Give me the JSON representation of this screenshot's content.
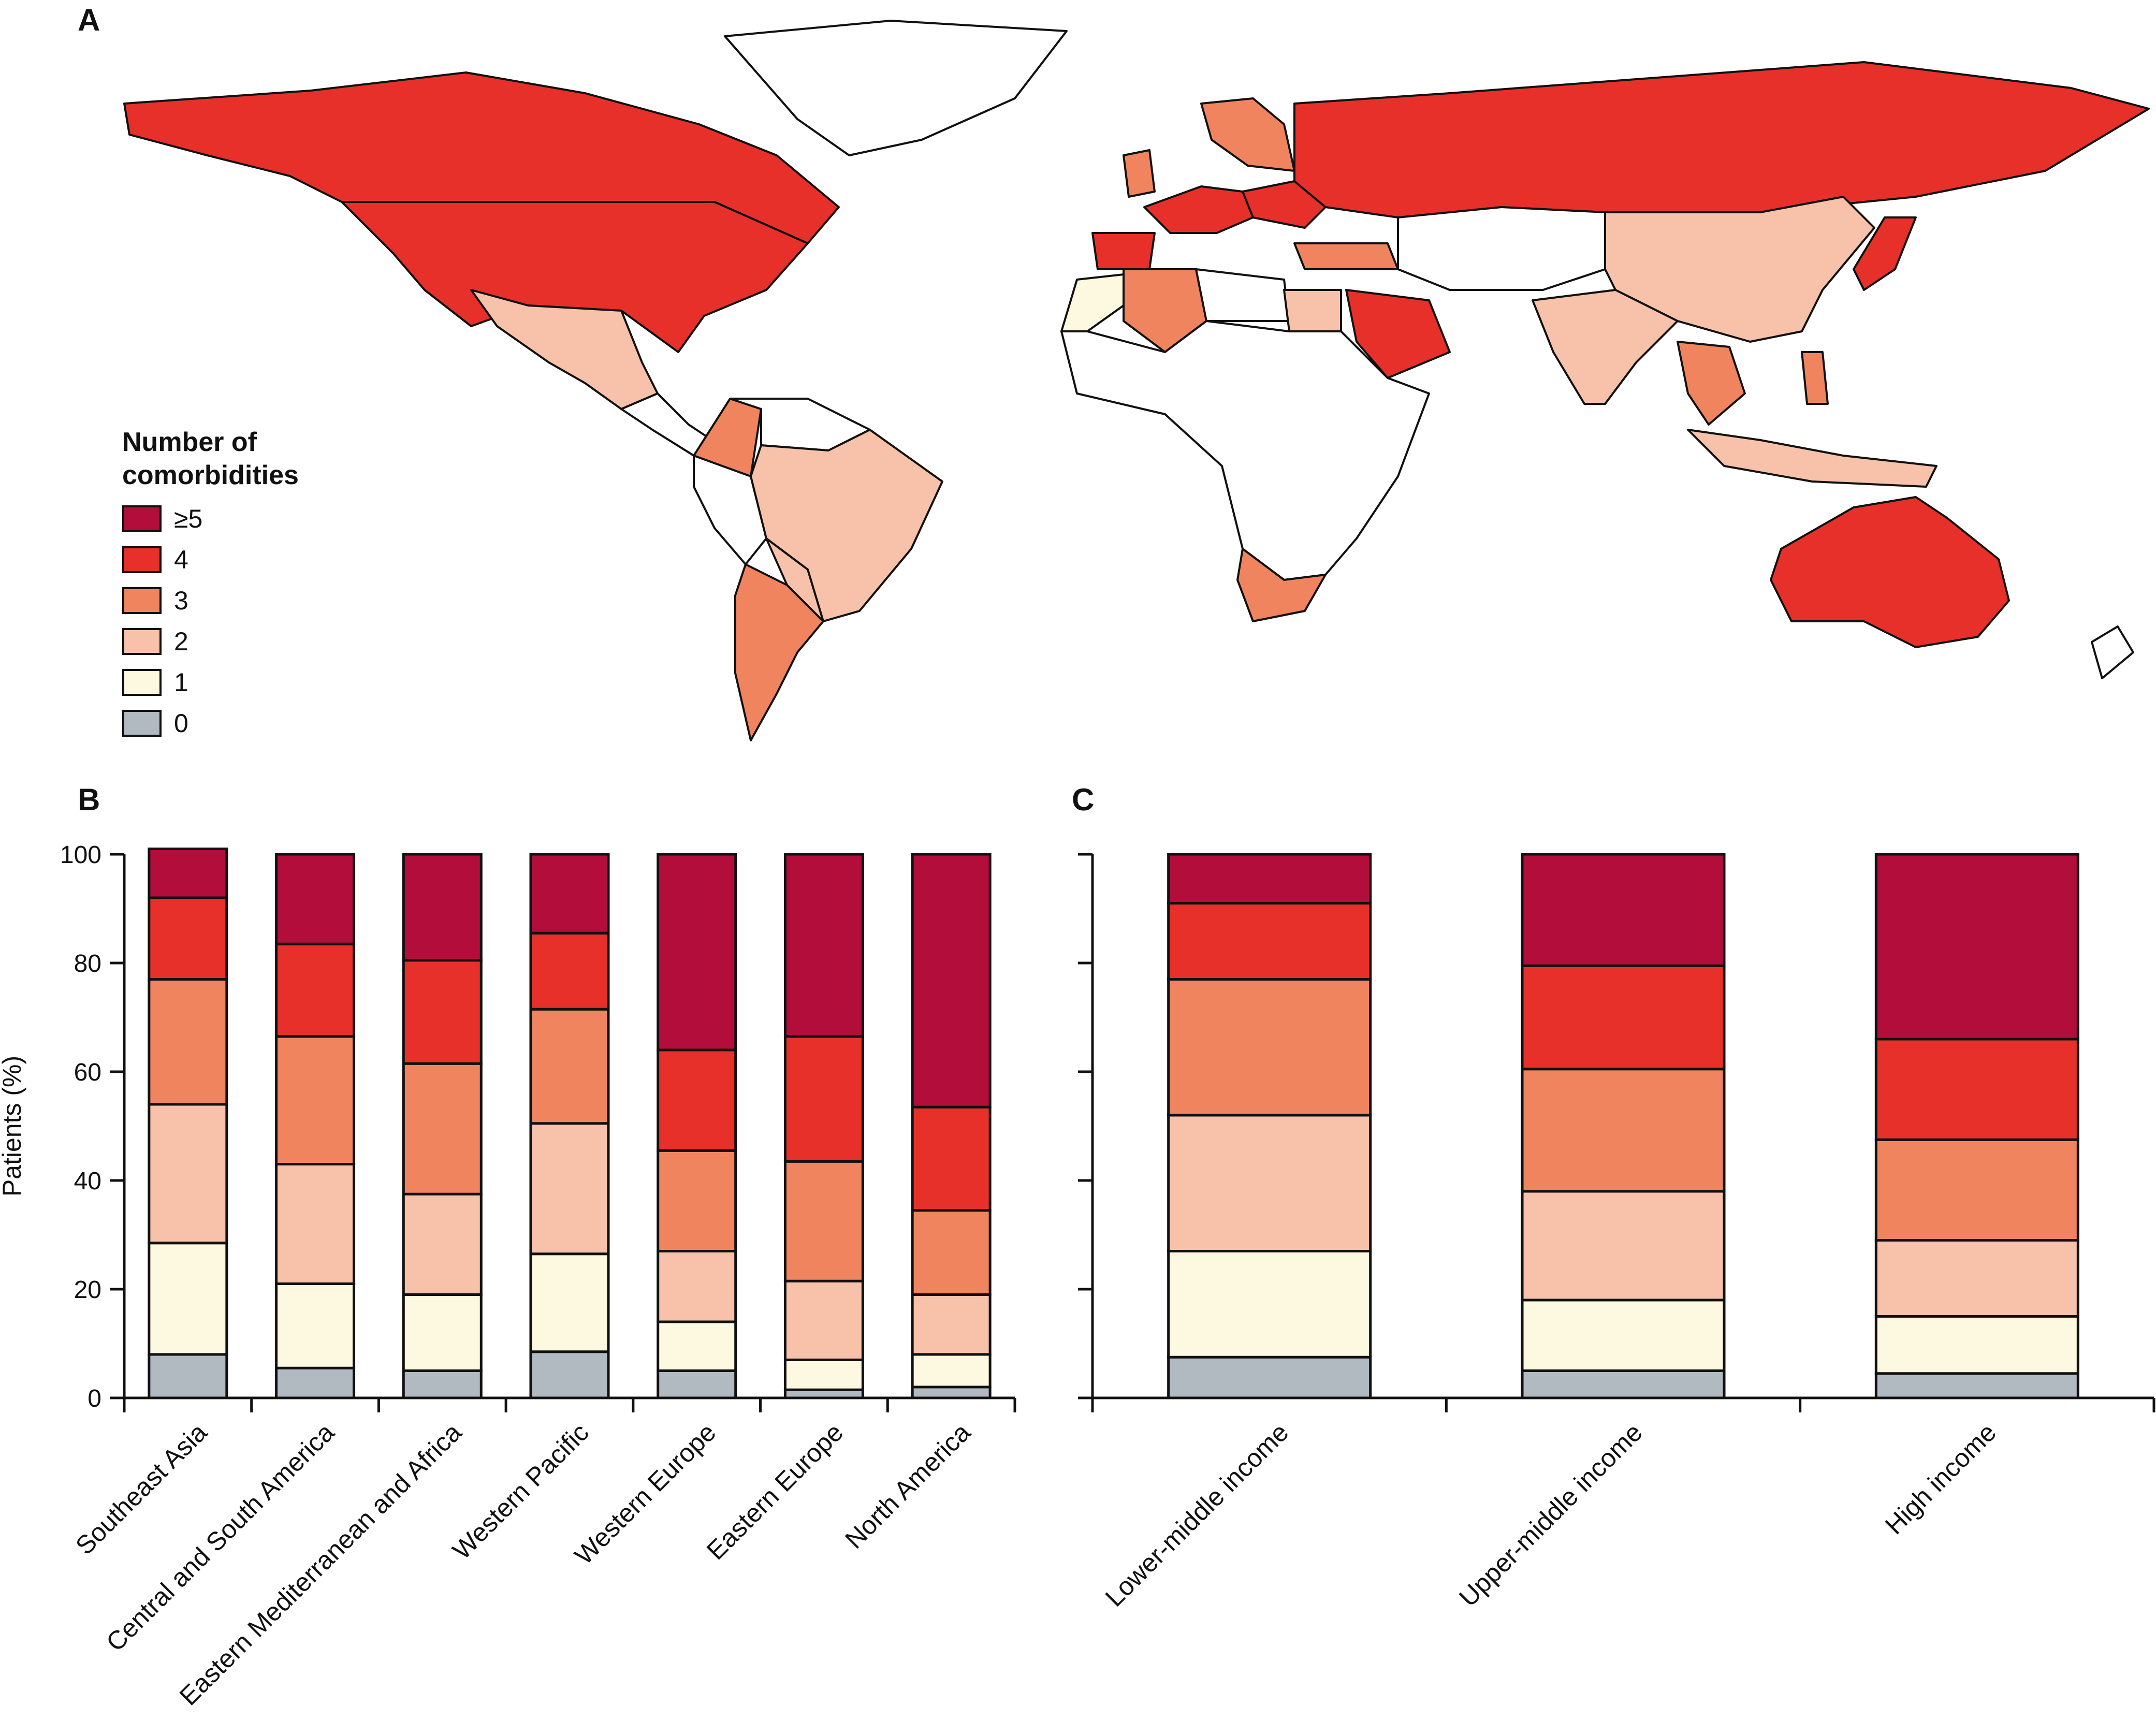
{
  "panels": {
    "a": "A",
    "b": "B",
    "c": "C"
  },
  "legend": {
    "title_line1": "Number of",
    "title_line2": "comorbidities",
    "items": [
      {
        "label": "≥5",
        "color": "#b20d3b"
      },
      {
        "label": "4",
        "color": "#e8302a"
      },
      {
        "label": "3",
        "color": "#f0845f"
      },
      {
        "label": "2",
        "color": "#f8c2aa"
      },
      {
        "label": "1",
        "color": "#fdf8e0"
      },
      {
        "label": "0",
        "color": "#b1b9c1"
      }
    ]
  },
  "map_colors": {
    "land_none": "#ffffff",
    "outline": "#111111"
  },
  "chart_data": [
    {
      "type": "bar",
      "stacked": true,
      "panel": "B",
      "ylabel": "Patients (%)",
      "ylim": [
        0,
        100
      ],
      "yticks": [
        0,
        20,
        40,
        60,
        80,
        100
      ],
      "categories": [
        "Southeast Asia",
        "Central and South America",
        "Eastern Mediterranean and Africa",
        "Western Pacific",
        "Western Europe",
        "Eastern Europe",
        "North America"
      ],
      "series": [
        {
          "name": "0",
          "color": "#b1b9c1",
          "values": [
            8,
            5.5,
            5,
            8.5,
            5,
            1.5,
            2
          ]
        },
        {
          "name": "1",
          "color": "#fdf8e0",
          "values": [
            20.5,
            15.5,
            14,
            18,
            9,
            5.5,
            6
          ]
        },
        {
          "name": "2",
          "color": "#f8c2aa",
          "values": [
            25.5,
            22,
            18.5,
            24,
            13,
            14.5,
            11
          ]
        },
        {
          "name": "3",
          "color": "#f0845f",
          "values": [
            23,
            23.5,
            24,
            21,
            18.5,
            22,
            15.5
          ]
        },
        {
          "name": "4",
          "color": "#e8302a",
          "values": [
            15,
            17,
            19,
            14,
            18.5,
            23,
            19
          ]
        },
        {
          "name": "≥5",
          "color": "#b20d3b",
          "values": [
            9,
            16.5,
            19.5,
            14.5,
            36,
            33.5,
            46.5
          ]
        }
      ]
    },
    {
      "type": "bar",
      "stacked": true,
      "panel": "C",
      "ylim": [
        0,
        100
      ],
      "categories": [
        "Lower-middle income",
        "Upper-middle income",
        "High income"
      ],
      "series": [
        {
          "name": "0",
          "color": "#b1b9c1",
          "values": [
            7.5,
            5,
            4.5
          ]
        },
        {
          "name": "1",
          "color": "#fdf8e0",
          "values": [
            19.5,
            13,
            10.5
          ]
        },
        {
          "name": "2",
          "color": "#f8c2aa",
          "values": [
            25,
            20,
            14
          ]
        },
        {
          "name": "3",
          "color": "#f0845f",
          "values": [
            25,
            22.5,
            18.5
          ]
        },
        {
          "name": "4",
          "color": "#e8302a",
          "values": [
            14,
            19,
            18.5
          ]
        },
        {
          "name": "≥5",
          "color": "#b20d3b",
          "values": [
            9,
            20.5,
            34
          ]
        }
      ]
    }
  ]
}
